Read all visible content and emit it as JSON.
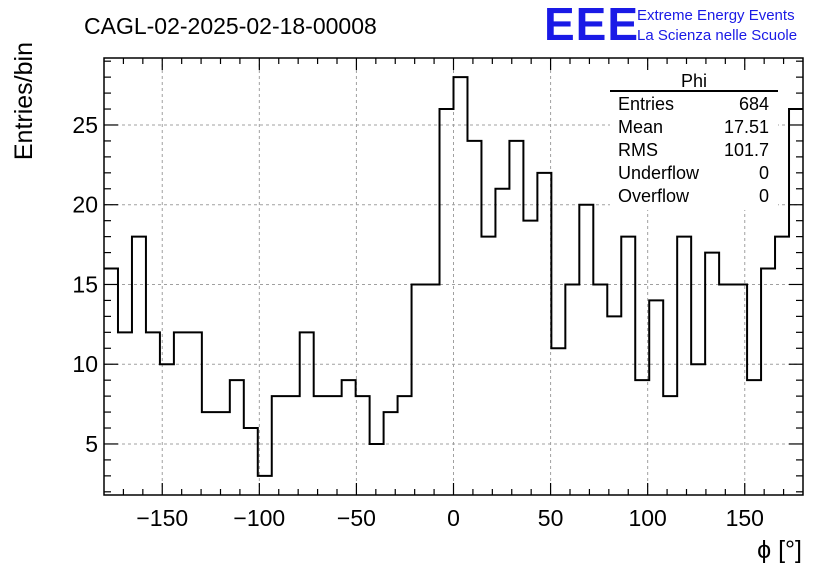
{
  "chart_data": {
    "type": "histogram",
    "title": "CAGL-02-2025-02-18-00008",
    "xlabel": "ϕ [°]",
    "ylabel": "Entries/bin",
    "xlim": [
      -180,
      180
    ],
    "ylim": [
      1.8,
      29.2
    ],
    "grid": true,
    "bin_width": 7.2,
    "x_ticks": [
      -150,
      -100,
      -50,
      0,
      50,
      100,
      150
    ],
    "x_tick_labels": [
      "−150",
      "−100",
      "−50",
      "0",
      "50",
      "100",
      "150"
    ],
    "y_ticks": [
      5,
      10,
      15,
      20,
      25
    ],
    "y_tick_labels": [
      "5",
      "10",
      "15",
      "20",
      "25"
    ],
    "values": [
      16,
      12,
      18,
      12,
      10,
      12,
      12,
      7,
      7,
      9,
      6,
      3,
      8,
      8,
      12,
      8,
      8,
      9,
      8,
      5,
      7,
      8,
      15,
      15,
      26,
      28,
      24,
      18,
      21,
      24,
      19,
      22,
      11,
      15,
      20,
      15,
      13,
      18,
      9,
      14,
      8,
      18,
      10,
      17,
      15,
      15,
      9,
      16,
      18,
      26
    ],
    "stats": {
      "name": "Phi",
      "rows": [
        {
          "label": "Entries",
          "value": "684"
        },
        {
          "label": "Mean",
          "value": "17.51"
        },
        {
          "label": "RMS",
          "value": "101.7"
        },
        {
          "label": "Underflow",
          "value": "0"
        },
        {
          "label": "Overflow",
          "value": "0"
        }
      ]
    }
  },
  "logo": {
    "mark": "EEE",
    "line1": "Extreme Energy Events",
    "line2": "La Scienza nelle Scuole",
    "color": "#1a1ae6"
  }
}
